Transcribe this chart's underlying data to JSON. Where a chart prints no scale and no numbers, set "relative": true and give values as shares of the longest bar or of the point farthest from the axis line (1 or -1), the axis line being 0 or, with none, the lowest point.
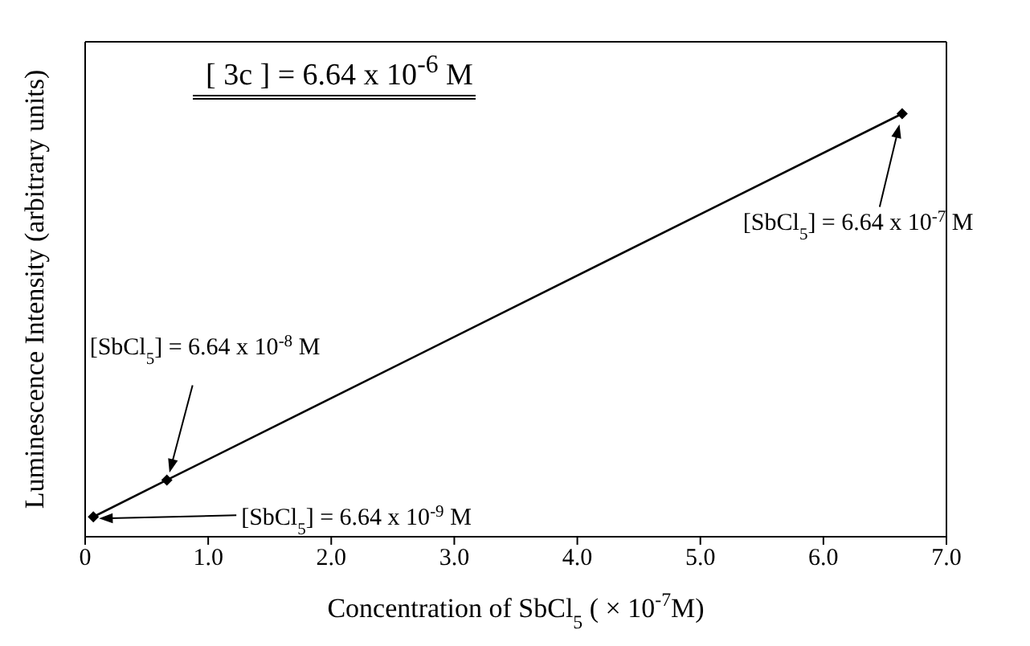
{
  "chart_data": {
    "type": "line",
    "title": "[ 3c ] = 6.64 x 10$^{-6}$ M",
    "xlabel": "Concentration of SbCl$_{5}$ ( × 10$^{-7}$M)",
    "ylabel": "Luminescence Intensity (arbitrary units)",
    "x": [
      0.0664,
      0.664,
      6.64
    ],
    "relative": true,
    "series": [
      {
        "color": "#000000",
        "values": [
          0.047,
          0.134,
          1
        ]
      }
    ],
    "xlim": [
      0,
      7
    ],
    "xticks": [
      {
        "value": 0,
        "label": "0"
      },
      {
        "value": 1,
        "label": "1.0"
      },
      {
        "value": 2,
        "label": "2.0"
      },
      {
        "value": 3,
        "label": "3.0"
      },
      {
        "value": 4,
        "label": "4.0"
      },
      {
        "value": 5,
        "label": "5.0"
      },
      {
        "value": 6,
        "label": "6.0"
      },
      {
        "value": 7,
        "label": "7.0"
      }
    ],
    "marker": "diamond",
    "line_style": "solid",
    "grid": false,
    "legend": false,
    "annotations": [
      {
        "text": "[SbCl$_{5}$] = 6.64 x 10$^{-9}$ M",
        "x": 0.0664,
        "y": 0.047
      },
      {
        "text": "[SbCl$_{5}$] = 6.64 x 10$^{-8}$ M",
        "x": 0.664,
        "y": 0.134
      },
      {
        "text": "[SbCl$_{5}$] = 6.64 x 10$^{-7}$ M",
        "x": 6.64,
        "y": 1
      }
    ]
  }
}
